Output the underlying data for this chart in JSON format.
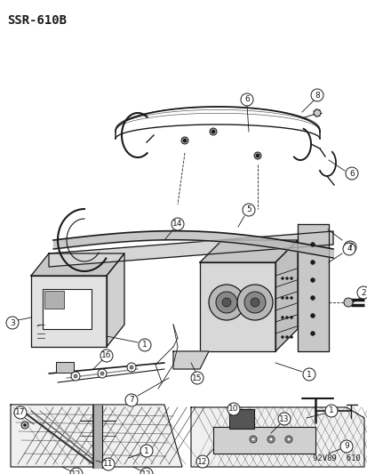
{
  "title": "SSR-610B",
  "footer": "92V89  610",
  "bg_color": "#ffffff",
  "fig_width": 4.14,
  "fig_height": 5.33,
  "dpi": 100,
  "title_fontsize": 10,
  "footer_fontsize": 6.5,
  "label_fontsize": 6.5,
  "line_color": "#1a1a1a",
  "gray_fill": "#d8d8d8",
  "dark_fill": "#888888"
}
